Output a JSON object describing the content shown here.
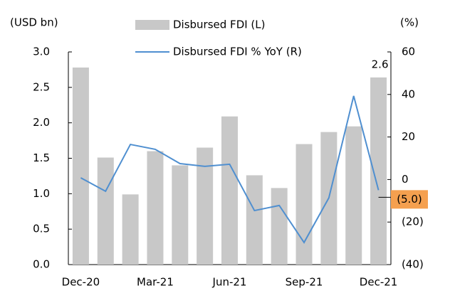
{
  "chart_data": {
    "type": "bar_line",
    "y_axis_label": "(USD bn)",
    "y2_axis_label": "(%)",
    "categories": [
      "Dec-20",
      null,
      null,
      "Mar-21",
      null,
      null,
      "Jun-21",
      null,
      null,
      "Sep-21",
      null,
      null,
      "Dec-21"
    ],
    "series": [
      {
        "name": "Disbursed FDI (L)",
        "color": "#c8c8c8",
        "type": "bar",
        "values": [
          2.78,
          1.51,
          0.99,
          1.6,
          1.4,
          1.65,
          2.09,
          1.26,
          1.08,
          1.7,
          1.87,
          1.95,
          2.64
        ],
        "value_labels": [
          null,
          null,
          null,
          null,
          null,
          null,
          null,
          null,
          null,
          null,
          null,
          null,
          "2.6"
        ]
      },
      {
        "name": "Disbursed FDI % YoY (R)",
        "color": "#4f8fd0",
        "type": "line",
        "axis": "y2",
        "values": [
          0.8,
          -5.5,
          16.5,
          14.2,
          7.5,
          6.2,
          7.2,
          -14.6,
          -12.2,
          -29.6,
          -8.6,
          39.3,
          -5.0
        ],
        "value_labels": [
          null,
          null,
          null,
          null,
          null,
          null,
          null,
          null,
          null,
          null,
          null,
          null,
          "(5.0)"
        ]
      }
    ],
    "ylim": [
      0,
      3
    ],
    "yticks": [
      {
        "value": 0,
        "label": "0.0"
      },
      {
        "value": 0.5,
        "label": "0.5"
      },
      {
        "value": 1,
        "label": "1.0"
      },
      {
        "value": 1.5,
        "label": "1.5"
      },
      {
        "value": 2,
        "label": "2.0"
      },
      {
        "value": 2.5,
        "label": "2.5"
      },
      {
        "value": 3,
        "label": "3.0"
      }
    ],
    "y2lim": [
      -40,
      60
    ],
    "y2ticks": [
      {
        "value": -40,
        "label": "(40)"
      },
      {
        "value": -20,
        "label": "(20)"
      },
      0,
      20,
      40,
      60
    ],
    "grid": false
  }
}
